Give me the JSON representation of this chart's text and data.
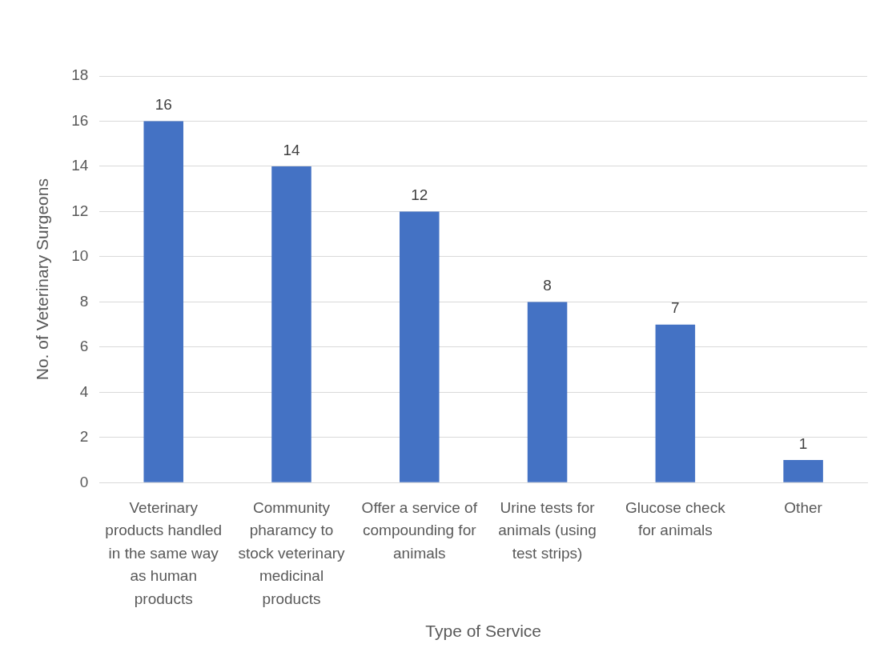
{
  "chart_data": {
    "type": "bar",
    "xlabel": "Type of Service",
    "ylabel": "No. of Veterinary Surgeons",
    "categories": [
      "Veterinary products handled in the same way as human products",
      "Community pharamcy to stock veterinary medicinal products",
      "Offer a service of compounding for animals",
      "Urine tests for animals (using test strips)",
      "Glucose check for animals",
      "Other"
    ],
    "values": [
      16,
      14,
      12,
      8,
      7,
      1
    ],
    "color": "#4472c4",
    "ylim": [
      0,
      18
    ],
    "yticks": [
      0,
      2,
      4,
      6,
      8,
      10,
      12,
      14,
      16,
      18
    ],
    "grid": "y",
    "legend": false,
    "data_labels": true
  }
}
